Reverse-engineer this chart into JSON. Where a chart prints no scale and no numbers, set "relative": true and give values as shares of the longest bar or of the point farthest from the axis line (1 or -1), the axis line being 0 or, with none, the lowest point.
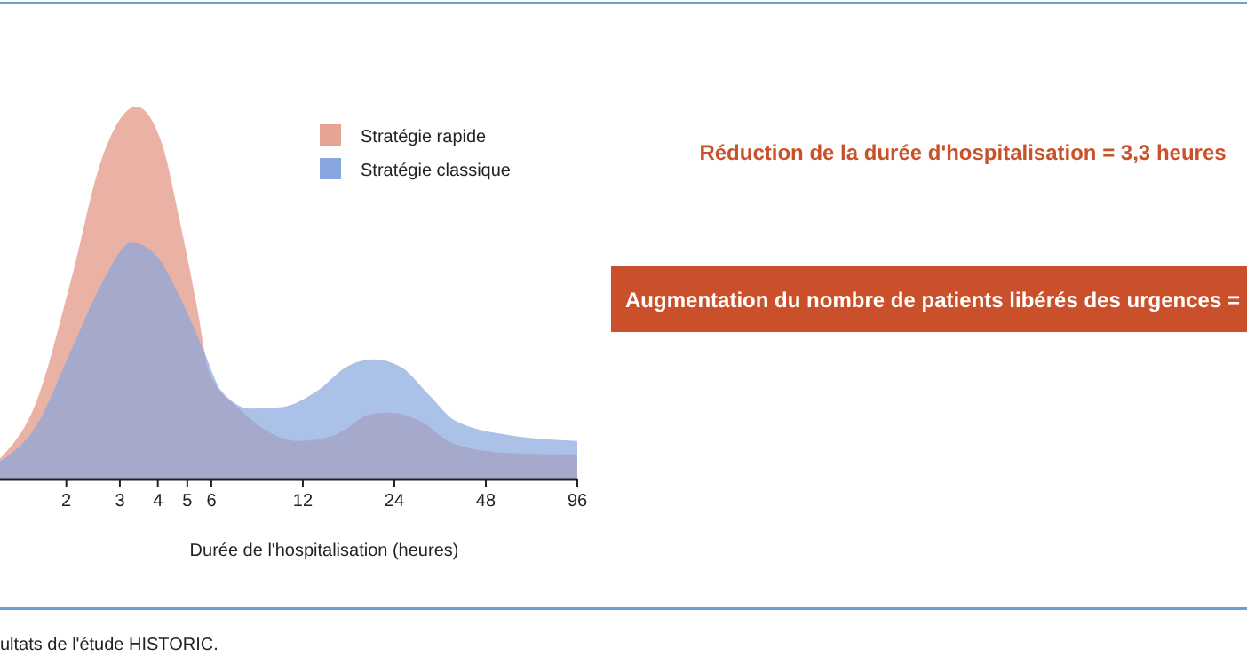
{
  "chart_data": {
    "type": "area",
    "xlabel": "Durée de l'hospitalisation (heures)",
    "relative": true,
    "log": "x",
    "xlim": [
      1.21,
      96
    ],
    "xticks": [
      2,
      3,
      4,
      5,
      6,
      12,
      24,
      48,
      96
    ],
    "legend": "top right",
    "grid": false,
    "series": [
      {
        "name": "Stratégie rapide",
        "color": "#e6a594",
        "x": [
          1.21,
          1.59,
          2.08,
          2.61,
          3.4,
          4.11,
          4.71,
          5.39,
          5.91,
          7.41,
          9.29,
          11.7,
          15.3,
          20.1,
          23.0,
          28.8,
          37.8,
          56.9,
          96
        ],
        "values": [
          0.056,
          0.206,
          0.54,
          0.857,
          1,
          0.905,
          0.698,
          0.46,
          0.286,
          0.19,
          0.127,
          0.103,
          0.119,
          0.175,
          0.179,
          0.159,
          0.095,
          0.071,
          0.067
        ]
      },
      {
        "name": "Stratégie classique",
        "color": "#88a7de",
        "x": [
          1.21,
          1.59,
          2.08,
          2.61,
          3.28,
          3.93,
          4.71,
          5.64,
          6.47,
          8.11,
          10.2,
          13.4,
          16.7,
          20.5,
          25.2,
          31.6,
          37.8,
          56.9,
          96
        ],
        "values": [
          0.048,
          0.143,
          0.349,
          0.524,
          0.635,
          0.603,
          0.492,
          0.349,
          0.238,
          0.19,
          0.194,
          0.238,
          0.302,
          0.322,
          0.302,
          0.222,
          0.159,
          0.119,
          0.103
        ]
      }
    ],
    "annotations": [
      "Réduction de la durée d'hospitalisation = 3,3 heures",
      "Augmentation du nombre de patients libérés des urgences =",
      "ultats de l'étude HISTORIC."
    ]
  }
}
